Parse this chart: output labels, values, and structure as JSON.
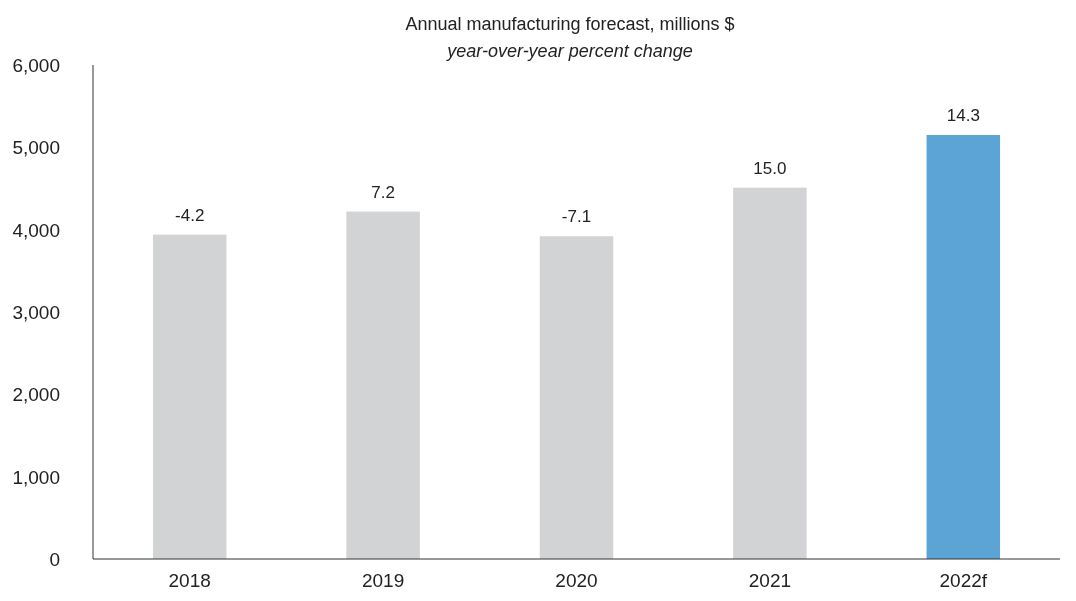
{
  "chart_data": {
    "type": "bar",
    "title": "Annual manufacturing forecast, millions $",
    "subtitle": "year-over-year percent change",
    "categories": [
      "2018",
      "2019",
      "2020",
      "2021",
      "2022f"
    ],
    "values": [
      3940,
      4220,
      3920,
      4510,
      5150
    ],
    "colors": [
      "#d1d3d4",
      "#d1d3d4",
      "#d1d3d4",
      "#d1d3d4",
      "#5ba4d5"
    ],
    "annotations": [
      {
        "text": "-4.2",
        "x": "2018",
        "y": 3940
      },
      {
        "text": "7.2",
        "x": "2019",
        "y": 4220
      },
      {
        "text": "-7.1",
        "x": "2020",
        "y": 3920
      },
      {
        "text": "15.0",
        "x": "2021",
        "y": 4510
      },
      {
        "text": "14.3",
        "x": "2022f",
        "y": 5150
      }
    ],
    "ylim": [
      0,
      6000
    ],
    "yticks": [
      {
        "value": 0,
        "label": "0"
      },
      {
        "value": 1000,
        "label": "1,000"
      },
      {
        "value": 2000,
        "label": "2,000"
      },
      {
        "value": 3000,
        "label": "3,000"
      },
      {
        "value": 4000,
        "label": "4,000"
      },
      {
        "value": 5000,
        "label": "5,000"
      },
      {
        "value": 6000,
        "label": "6,000"
      }
    ],
    "grid": false
  }
}
